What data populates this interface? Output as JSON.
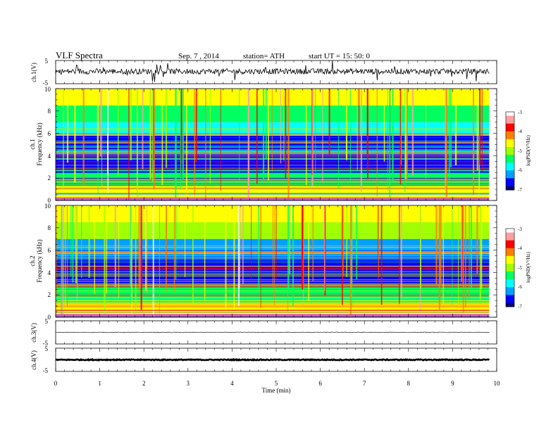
{
  "header": {
    "title": "VLF  Spectra",
    "date": "Sep. 7  , 2014",
    "station": "station= ATH",
    "start": "start  UT  =    15: 50: 0"
  },
  "colors": {
    "background_low": "#00006b",
    "band_cyan": "#00c8ff",
    "band_green": "#22d35a",
    "band_yellow": "#f3e20b",
    "band_red": "#e7391f",
    "line_magenta": "#c030b0",
    "trace": "#000000"
  },
  "colormap": [
    "#000070",
    "#0000ff",
    "#00a0ff",
    "#00ffff",
    "#00ff60",
    "#a0ff00",
    "#ffff00",
    "#ff8000",
    "#ff0000",
    "#ffa0a0",
    "#ffffff"
  ],
  "chart_data": [
    {
      "type": "line",
      "name": "ch1-waveform",
      "ylabel": "ch.1(V)",
      "ylim": [
        -5,
        5
      ],
      "yticks": [
        "5",
        "-5"
      ],
      "xlim": [
        0,
        9.83
      ],
      "baseline": 0.3,
      "noise_amplitude": 1.2,
      "spike_amplitude": 4
    },
    {
      "type": "heatmap",
      "name": "ch1-spectrogram",
      "channel_label": "ch.1",
      "ylabel": "Frequency  (kHz)",
      "ylim": [
        0,
        10
      ],
      "yticks": [
        "0",
        "2",
        "4",
        "6",
        "8",
        "10"
      ],
      "xlim": [
        0,
        9.83
      ],
      "colorbar": {
        "label": "logPSD(V²/Hz)",
        "range": [
          -7,
          -3
        ],
        "ticks": [
          "-3",
          "-4",
          "-5",
          "-6",
          "-7"
        ]
      },
      "bands_khz": [
        {
          "from": 0.0,
          "to": 0.3,
          "level": -3.6
        },
        {
          "from": 0.3,
          "to": 1.3,
          "level": -4.6
        },
        {
          "from": 1.3,
          "to": 2.4,
          "level": -5.6
        },
        {
          "from": 2.4,
          "to": 5.8,
          "level": -6.7
        },
        {
          "from": 5.8,
          "to": 7.0,
          "level": -6.0
        },
        {
          "from": 7.0,
          "to": 8.5,
          "level": -5.3
        },
        {
          "from": 8.5,
          "to": 10.0,
          "level": -4.5
        }
      ],
      "impulse_count": 85
    },
    {
      "type": "heatmap",
      "name": "ch2-spectrogram",
      "channel_label": "ch.2",
      "ylabel": "Frequency  (kHz)",
      "ylim": [
        0,
        10
      ],
      "yticks": [
        "0",
        "2",
        "4",
        "6",
        "8",
        "10"
      ],
      "xlim": [
        0,
        9.83
      ],
      "colorbar": {
        "label": "logPSD(V²/Hz)",
        "range": [
          -7,
          -3
        ],
        "ticks": [
          "-3",
          "-4",
          "-5",
          "-6",
          "-7"
        ]
      },
      "bands_khz": [
        {
          "from": 0.0,
          "to": 0.3,
          "level": -3.6
        },
        {
          "from": 0.3,
          "to": 1.5,
          "level": -4.5
        },
        {
          "from": 1.5,
          "to": 2.8,
          "level": -5.4
        },
        {
          "from": 2.8,
          "to": 5.2,
          "level": -6.4
        },
        {
          "from": 5.2,
          "to": 7.0,
          "level": -6.2
        },
        {
          "from": 7.0,
          "to": 8.5,
          "level": -5.2
        },
        {
          "from": 8.5,
          "to": 10.0,
          "level": -4.5
        }
      ],
      "impulse_count": 85
    },
    {
      "type": "line",
      "name": "ch3-waveform",
      "ylabel": "ch.3(V)",
      "ylim": [
        -5,
        5
      ],
      "yticks": [
        "5",
        "-5"
      ],
      "xlim": [
        0,
        9.83
      ],
      "baseline": 0,
      "noise_amplitude": 0.15,
      "spike_amplitude": 0
    },
    {
      "type": "line",
      "name": "ch4-waveform",
      "ylabel": "ch.4(V)",
      "ylim": [
        -5,
        5
      ],
      "yticks": [
        "5",
        "-5"
      ],
      "xlim": [
        0,
        9.83
      ],
      "baseline": 0,
      "noise_amplitude": 0.2,
      "spike_amplitude": 0
    }
  ],
  "time_axis": {
    "label": "Time  (min)",
    "ticks": [
      "0",
      "1",
      "2",
      "3",
      "4",
      "5",
      "6",
      "7",
      "8",
      "9",
      "10"
    ],
    "range": [
      0,
      10
    ]
  }
}
